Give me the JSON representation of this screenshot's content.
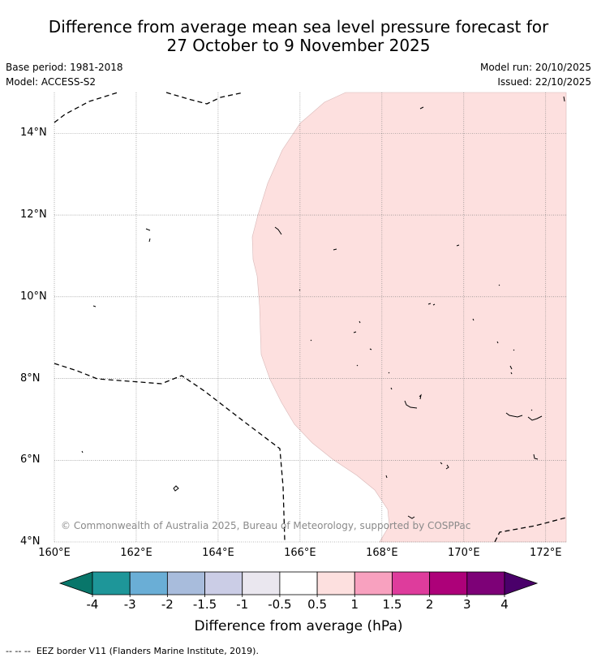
{
  "title": {
    "line1": "Difference from average mean sea level pressure forecast for",
    "line2": "27 October to 9 November 2025"
  },
  "meta": {
    "base_period": "Base period: 1981-2018",
    "model": "Model: ACCESS-S2",
    "model_run": "Model run: 20/10/2025",
    "issued": "Issued: 22/10/2025"
  },
  "map": {
    "lon_range": [
      160,
      172.5
    ],
    "lat_range": [
      4,
      15
    ],
    "lat_ticks": [
      {
        "value": 14,
        "label": "14°N"
      },
      {
        "value": 12,
        "label": "12°N"
      },
      {
        "value": 10,
        "label": "10°N"
      },
      {
        "value": 8,
        "label": "8°N"
      },
      {
        "value": 6,
        "label": "6°N"
      },
      {
        "value": 4,
        "label": "4°N"
      }
    ],
    "lon_ticks": [
      {
        "value": 160,
        "label": "160°E"
      },
      {
        "value": 162,
        "label": "162°E"
      },
      {
        "value": 164,
        "label": "164°E"
      },
      {
        "value": 166,
        "label": "166°E"
      },
      {
        "value": 168,
        "label": "168°E"
      },
      {
        "value": 170,
        "label": "170°E"
      },
      {
        "value": 172,
        "label": "172°E"
      }
    ],
    "anomaly_category": "0.5 to 1",
    "anomaly_color": "#fde0df",
    "credit": "© Commonwealth of Australia 2025, Bureau of Meteorology, supported by COSPPac"
  },
  "colorbar": {
    "colors": [
      "#08766a",
      "#1e9699",
      "#6aaed6",
      "#a8bcdc",
      "#cbcde6",
      "#eae7ef",
      "#ffffff",
      "#fde0df",
      "#f8a1bf",
      "#de3c9c",
      "#ad0179",
      "#7d0177",
      "#4a006a"
    ],
    "ticks": [
      "-4",
      "-3",
      "-2",
      "-1.5",
      "-1",
      "-0.5",
      "0.5",
      "1",
      "1.5",
      "2",
      "3",
      "4"
    ],
    "label": "Difference from average (hPa)"
  },
  "legend": {
    "eez_symbol": "-- -- --",
    "eez_text": "EEZ border V11 (Flanders Marine Institute, 2019)."
  }
}
